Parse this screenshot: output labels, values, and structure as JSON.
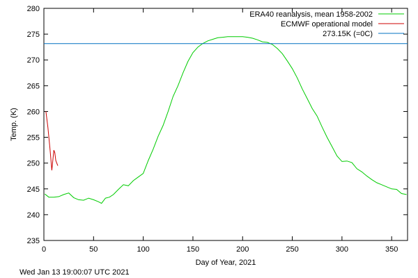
{
  "chart_data": {
    "type": "line",
    "xlabel": "Day of Year, 2021",
    "ylabel": "Temp. (K)",
    "xlim": [
      0,
      366
    ],
    "ylim": [
      235,
      280
    ],
    "xticks": [
      0,
      50,
      100,
      150,
      200,
      250,
      300,
      350
    ],
    "yticks": [
      235,
      240,
      245,
      250,
      255,
      260,
      265,
      270,
      275,
      280
    ],
    "grid": false,
    "legend_position": "top-right",
    "series": [
      {
        "name": "ERA40 reanalysis, mean 1958-2002",
        "color": "#00cc00",
        "x": [
          1,
          5,
          10,
          15,
          20,
          25,
          30,
          35,
          40,
          45,
          50,
          55,
          58,
          62,
          66,
          70,
          75,
          80,
          85,
          90,
          95,
          100,
          105,
          110,
          115,
          120,
          125,
          130,
          135,
          140,
          145,
          150,
          155,
          160,
          165,
          170,
          175,
          180,
          185,
          190,
          195,
          200,
          205,
          210,
          215,
          220,
          225,
          230,
          235,
          240,
          245,
          250,
          255,
          260,
          265,
          270,
          275,
          280,
          285,
          290,
          295,
          300,
          305,
          310,
          315,
          320,
          325,
          330,
          335,
          340,
          345,
          350,
          355,
          360,
          365
        ],
        "y": [
          244.0,
          243.4,
          243.4,
          243.5,
          243.9,
          244.2,
          243.3,
          242.9,
          242.8,
          243.2,
          242.9,
          242.5,
          242.2,
          243.2,
          243.4,
          243.9,
          244.9,
          245.8,
          245.6,
          246.6,
          247.3,
          248.0,
          250.5,
          252.7,
          255.2,
          257.3,
          260.0,
          262.9,
          265.0,
          267.5,
          269.7,
          271.4,
          272.5,
          273.2,
          273.7,
          274.0,
          274.3,
          274.4,
          274.5,
          274.5,
          274.5,
          274.5,
          274.4,
          274.2,
          273.9,
          273.5,
          273.4,
          273.0,
          272.2,
          271.2,
          269.8,
          268.3,
          266.5,
          264.4,
          262.5,
          260.6,
          259.1,
          257.0,
          255.0,
          253.2,
          251.4,
          250.3,
          250.4,
          250.1,
          248.9,
          248.3,
          247.5,
          246.8,
          246.2,
          245.8,
          245.4,
          245.0,
          244.9,
          244.1,
          243.9
        ]
      },
      {
        "name": "ECMWF operational model",
        "color": "#cc0000",
        "x": [
          2,
          4,
          6,
          8,
          9,
          10,
          11,
          12,
          13,
          14
        ],
        "y": [
          260.0,
          257.0,
          253.0,
          248.6,
          250.5,
          252.5,
          252.0,
          250.5,
          250.0,
          249.5
        ]
      },
      {
        "name": "273.15K (=0C)",
        "color": "#0070c0",
        "x": [
          0,
          366
        ],
        "y": [
          273.15,
          273.15
        ]
      }
    ]
  },
  "footer": {
    "timestamp": "Wed Jan 13 19:00:07 UTC 2021"
  }
}
